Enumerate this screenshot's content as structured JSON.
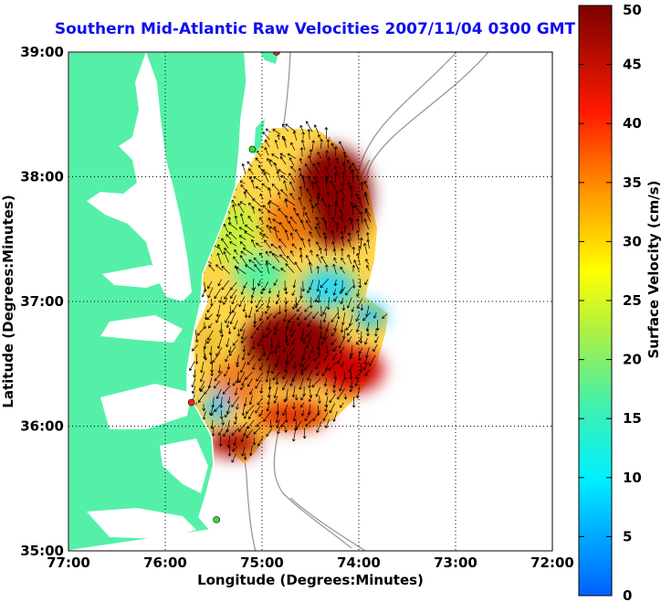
{
  "title": "Southern Mid-Atlantic Raw Velocities 2007/11/04 0300 GMT",
  "axes": {
    "xlabel": "Longitude (Degrees:Minutes)",
    "ylabel": "Latitude (Degrees:Minutes)",
    "x_ticks": [
      "77:00",
      "76:00",
      "75:00",
      "74:00",
      "73:00",
      "72:00"
    ],
    "y_ticks": [
      "39:00",
      "38:00",
      "37:00",
      "36:00",
      "35:00"
    ],
    "lon_range": [
      -77,
      -72
    ],
    "lat_range": [
      35,
      39
    ]
  },
  "colorbar": {
    "label": "Surface Velocity (cm/s)",
    "ticks": [
      "50",
      "45",
      "40",
      "35",
      "30",
      "25",
      "20",
      "15",
      "10",
      "5",
      "0"
    ],
    "range": [
      0,
      50
    ]
  },
  "colors": {
    "land": "#55f0a8",
    "ocean": "#ffffff",
    "coast": "#ffffff",
    "bathymetry": "#999999",
    "arrows": "#000000",
    "stations_green": "#33dd33",
    "stations_red": "#ee2222"
  },
  "stations": [
    {
      "lon": -74.85,
      "lat": 39.0,
      "color": "red"
    },
    {
      "lon": -75.1,
      "lat": 38.22,
      "color": "green"
    },
    {
      "lon": -75.73,
      "lat": 36.19,
      "color": "red"
    },
    {
      "lon": -75.47,
      "lat": 35.25,
      "color": "green"
    }
  ]
}
